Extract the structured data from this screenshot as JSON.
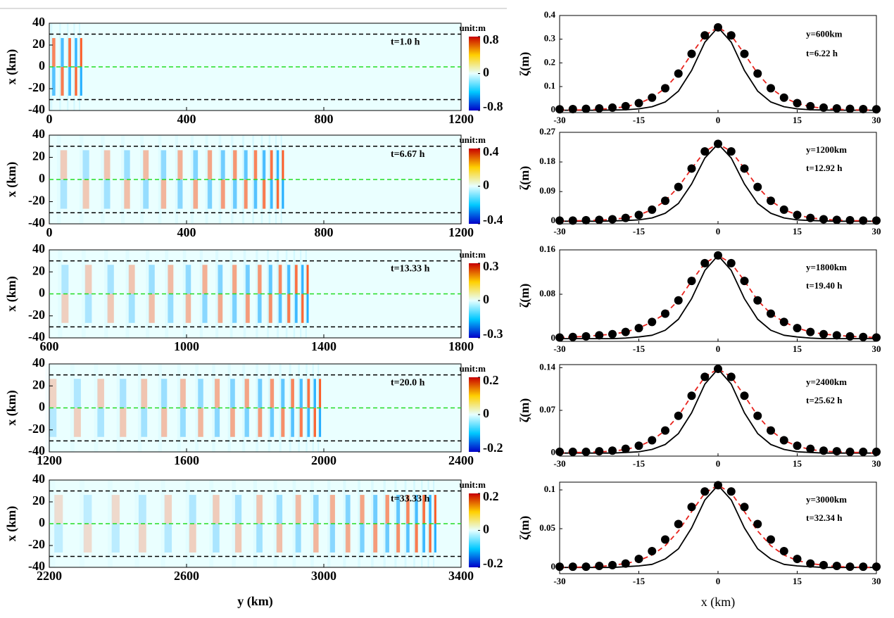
{
  "chart_data": [
    {
      "type": "heatmap",
      "xlim": [
        0,
        1200
      ],
      "xticks": [
        0,
        400,
        800,
        1200
      ],
      "ylim": [
        -40,
        40
      ],
      "yticks": [
        40,
        20,
        0,
        -20,
        -40
      ],
      "y_label": "x (km)",
      "annotation": "t=1.0 h",
      "reference_lines": [
        30,
        0,
        -30
      ],
      "colorbar": {
        "title": "unit:m",
        "lim": [
          -0.8,
          0.8
        ],
        "ticks": [
          0.8,
          0,
          -0.8
        ]
      }
    },
    {
      "type": "line",
      "x": [
        -30,
        -27.5,
        -25,
        -22.5,
        -20,
        -17.5,
        -15,
        -12.5,
        -10,
        -7.5,
        -5,
        -2.5,
        0,
        2.5,
        5,
        7.5,
        10,
        12.5,
        15,
        17.5,
        20,
        22.5,
        25,
        27.5,
        30
      ],
      "xlim": [
        -30,
        30
      ],
      "xticks": [
        -30,
        -15,
        0,
        15,
        30
      ],
      "ylim": [
        -0.01,
        0.4
      ],
      "yticks": [
        0,
        0.1,
        0.2,
        0.3,
        0.4
      ],
      "y_label": "ζ(m)",
      "annotations": [
        "y=600km",
        "t=6.22 h"
      ],
      "series": [
        {
          "color": "#000000",
          "style": "solid",
          "values": [
            0,
            0,
            0,
            0,
            0.001,
            0.002,
            0.006,
            0.015,
            0.035,
            0.081,
            0.168,
            0.287,
            0.35,
            0.287,
            0.168,
            0.081,
            0.035,
            0.015,
            0.006,
            0.002,
            0.001,
            0,
            0,
            0,
            0
          ]
        },
        {
          "color": "#e8231d",
          "style": "dashed",
          "values": [
            0.001,
            0.001,
            0.002,
            0.004,
            0.008,
            0.015,
            0.029,
            0.053,
            0.093,
            0.155,
            0.238,
            0.316,
            0.35,
            0.316,
            0.238,
            0.155,
            0.093,
            0.053,
            0.029,
            0.015,
            0.008,
            0.004,
            0.002,
            0.001,
            0.001
          ]
        },
        {
          "color": "#000000",
          "style": "markers",
          "values": [
            0.004,
            0.005,
            0.006,
            0.008,
            0.011,
            0.017,
            0.03,
            0.053,
            0.093,
            0.155,
            0.238,
            0.316,
            0.35,
            0.316,
            0.238,
            0.155,
            0.093,
            0.053,
            0.03,
            0.017,
            0.011,
            0.008,
            0.006,
            0.005,
            0.004
          ]
        }
      ]
    },
    {
      "type": "heatmap",
      "xlim": [
        0,
        1200
      ],
      "xticks": [
        0,
        400,
        800,
        1200
      ],
      "ylim": [
        -40,
        40
      ],
      "yticks": [
        40,
        20,
        0,
        -20,
        -40
      ],
      "y_label": "x (km)",
      "annotation": "t=6.67 h",
      "reference_lines": [
        30,
        0,
        -30
      ],
      "colorbar": {
        "title": "unit:m",
        "lim": [
          -0.4,
          0.4
        ],
        "ticks": [
          0.4,
          0,
          -0.4
        ]
      }
    },
    {
      "type": "line",
      "x": [
        -30,
        -27.5,
        -25,
        -22.5,
        -20,
        -17.5,
        -15,
        -12.5,
        -10,
        -7.5,
        -5,
        -2.5,
        0,
        2.5,
        5,
        7.5,
        10,
        12.5,
        15,
        17.5,
        20,
        22.5,
        25,
        27.5,
        30
      ],
      "xlim": [
        -30,
        30
      ],
      "xticks": [
        -30,
        -15,
        0,
        15,
        30
      ],
      "ylim": [
        -0.008,
        0.27
      ],
      "yticks": [
        0,
        0.09,
        0.18,
        0.27
      ],
      "y_label": "ζ(m)",
      "annotations": [
        "y=1200km",
        "t=12.92 h"
      ],
      "series": [
        {
          "color": "#000000",
          "style": "solid",
          "values": [
            0,
            0,
            0,
            0,
            0.001,
            0.002,
            0.004,
            0.01,
            0.024,
            0.054,
            0.113,
            0.192,
            0.235,
            0.192,
            0.113,
            0.054,
            0.024,
            0.01,
            0.004,
            0.002,
            0.001,
            0,
            0,
            0,
            0
          ]
        },
        {
          "color": "#e8231d",
          "style": "dashed",
          "values": [
            0,
            0.001,
            0.002,
            0.003,
            0.006,
            0.01,
            0.019,
            0.035,
            0.062,
            0.104,
            0.16,
            0.212,
            0.235,
            0.212,
            0.16,
            0.104,
            0.062,
            0.035,
            0.019,
            0.01,
            0.006,
            0.003,
            0.002,
            0.001,
            0
          ]
        },
        {
          "color": "#000000",
          "style": "markers",
          "values": [
            0.002,
            0.002,
            0.003,
            0.004,
            0.006,
            0.01,
            0.019,
            0.035,
            0.062,
            0.104,
            0.16,
            0.212,
            0.235,
            0.212,
            0.16,
            0.104,
            0.062,
            0.035,
            0.019,
            0.01,
            0.006,
            0.004,
            0.003,
            0.002,
            0.002
          ]
        }
      ]
    },
    {
      "type": "heatmap",
      "xlim": [
        600,
        1800
      ],
      "xticks": [
        600,
        1000,
        1400,
        1800
      ],
      "ylim": [
        -40,
        40
      ],
      "yticks": [
        40,
        20,
        0,
        -20,
        -40
      ],
      "y_label": "x (km)",
      "annotation": "t=13.33 h",
      "reference_lines": [
        30,
        0,
        -30
      ],
      "colorbar": {
        "title": "unit:m",
        "lim": [
          -0.3,
          0.3
        ],
        "ticks": [
          0.3,
          0,
          -0.3
        ]
      }
    },
    {
      "type": "line",
      "x": [
        -30,
        -27.5,
        -25,
        -22.5,
        -20,
        -17.5,
        -15,
        -12.5,
        -10,
        -7.5,
        -5,
        -2.5,
        0,
        2.5,
        5,
        7.5,
        10,
        12.5,
        15,
        17.5,
        20,
        22.5,
        25,
        27.5,
        30
      ],
      "xlim": [
        -30,
        30
      ],
      "xticks": [
        -30,
        -15,
        0,
        15,
        30
      ],
      "ylim": [
        -0.005,
        0.16
      ],
      "yticks": [
        0,
        0.08,
        0.16
      ],
      "y_label": "ζ(m)",
      "annotations": [
        "y=1800km",
        "t=19.40 h"
      ],
      "series": [
        {
          "color": "#000000",
          "style": "solid",
          "values": [
            0,
            0,
            0,
            0,
            0,
            0.001,
            0.003,
            0.006,
            0.015,
            0.035,
            0.072,
            0.123,
            0.15,
            0.123,
            0.072,
            0.035,
            0.015,
            0.006,
            0.003,
            0.001,
            0,
            0,
            0,
            0,
            0
          ]
        },
        {
          "color": "#e8231d",
          "style": "dashed",
          "values": [
            0.002,
            0.003,
            0.004,
            0.006,
            0.008,
            0.012,
            0.019,
            0.03,
            0.045,
            0.069,
            0.104,
            0.136,
            0.15,
            0.136,
            0.104,
            0.069,
            0.045,
            0.03,
            0.019,
            0.012,
            0.008,
            0.006,
            0.004,
            0.003,
            0.002
          ]
        },
        {
          "color": "#000000",
          "style": "markers",
          "values": [
            0.002,
            0.003,
            0.004,
            0.006,
            0.008,
            0.012,
            0.019,
            0.03,
            0.045,
            0.069,
            0.104,
            0.136,
            0.15,
            0.136,
            0.104,
            0.069,
            0.045,
            0.03,
            0.019,
            0.012,
            0.008,
            0.006,
            0.004,
            0.003,
            0.002
          ]
        }
      ]
    },
    {
      "type": "heatmap",
      "xlim": [
        1200,
        2400
      ],
      "xticks": [
        1200,
        1600,
        2000,
        2400
      ],
      "ylim": [
        -40,
        40
      ],
      "yticks": [
        40,
        20,
        0,
        -20,
        -40
      ],
      "y_label": "x (km)",
      "annotation": "t=20.0 h",
      "reference_lines": [
        30,
        0,
        -30
      ],
      "colorbar": {
        "title": "unit:m",
        "lim": [
          -0.2,
          0.2
        ],
        "ticks": [
          0.2,
          0,
          -0.2
        ]
      }
    },
    {
      "type": "line",
      "x": [
        -30,
        -27.5,
        -25,
        -22.5,
        -20,
        -17.5,
        -15,
        -12.5,
        -10,
        -7.5,
        -5,
        -2.5,
        0,
        2.5,
        5,
        7.5,
        10,
        12.5,
        15,
        17.5,
        20,
        22.5,
        25,
        27.5,
        30
      ],
      "xlim": [
        -30,
        30
      ],
      "xticks": [
        -30,
        -15,
        0,
        15,
        30
      ],
      "ylim": [
        -0.005,
        0.145
      ],
      "yticks": [
        0,
        0.07,
        0.14
      ],
      "y_label": "ζ(m)",
      "annotations": [
        "y=2400km",
        "t=25.62 h"
      ],
      "series": [
        {
          "color": "#000000",
          "style": "solid",
          "values": [
            0,
            0,
            0,
            0,
            0,
            0.001,
            0.002,
            0.006,
            0.014,
            0.032,
            0.066,
            0.113,
            0.138,
            0.113,
            0.066,
            0.032,
            0.014,
            0.006,
            0.002,
            0.001,
            0,
            0,
            0,
            0,
            0
          ]
        },
        {
          "color": "#e8231d",
          "style": "dashed",
          "values": [
            0,
            0.001,
            0.001,
            0.002,
            0.003,
            0.006,
            0.011,
            0.021,
            0.037,
            0.061,
            0.094,
            0.125,
            0.138,
            0.125,
            0.094,
            0.061,
            0.037,
            0.021,
            0.011,
            0.006,
            0.003,
            0.002,
            0.001,
            0.001,
            0
          ]
        },
        {
          "color": "#000000",
          "style": "markers",
          "values": [
            0.002,
            0.002,
            0.002,
            0.003,
            0.004,
            0.007,
            0.012,
            0.021,
            0.037,
            0.061,
            0.094,
            0.125,
            0.138,
            0.125,
            0.094,
            0.061,
            0.037,
            0.021,
            0.012,
            0.007,
            0.004,
            0.003,
            0.002,
            0.002,
            0.002
          ]
        }
      ]
    },
    {
      "type": "heatmap",
      "xlim": [
        2200,
        3400
      ],
      "xticks": [
        2200,
        2600,
        3000,
        3400
      ],
      "ylim": [
        -40,
        40
      ],
      "yticks": [
        40,
        20,
        0,
        -20,
        -40
      ],
      "y_label": "x (km)",
      "x_label": "y (km)",
      "annotation": "t=33.33 h",
      "reference_lines": [
        30,
        0,
        -30
      ],
      "colorbar": {
        "title": "unit:m",
        "lim": [
          -0.2,
          0.2
        ],
        "ticks": [
          0.2,
          0,
          -0.2
        ]
      }
    },
    {
      "type": "line",
      "x": [
        -30,
        -27.5,
        -25,
        -22.5,
        -20,
        -17.5,
        -15,
        -12.5,
        -10,
        -7.5,
        -5,
        -2.5,
        0,
        2.5,
        5,
        7.5,
        10,
        12.5,
        15,
        17.5,
        20,
        22.5,
        25,
        27.5,
        30
      ],
      "xlim": [
        -30,
        30
      ],
      "xticks": [
        -30,
        -15,
        0,
        15,
        30
      ],
      "ylim": [
        -0.008,
        0.11
      ],
      "yticks": [
        0,
        0.05,
        0.1
      ],
      "y_label": "ζ(m)",
      "x_label": "x (km)",
      "annotations": [
        "y=3000km",
        "t=32.34 h"
      ],
      "series": [
        {
          "color": "#000000",
          "style": "solid",
          "values": [
            0,
            0,
            0,
            0,
            0,
            0.001,
            0.002,
            0.004,
            0.011,
            0.024,
            0.051,
            0.087,
            0.106,
            0.087,
            0.051,
            0.024,
            0.011,
            0.004,
            0.002,
            0.001,
            0,
            0,
            0,
            0,
            0
          ]
        },
        {
          "color": "#e8231d",
          "style": "dashed",
          "values": [
            0,
            0,
            0.001,
            0.001,
            0.003,
            0.005,
            0.009,
            0.016,
            0.028,
            0.047,
            0.072,
            0.096,
            0.106,
            0.096,
            0.072,
            0.047,
            0.028,
            0.016,
            0.009,
            0.005,
            0.003,
            0.001,
            0.001,
            0,
            0
          ]
        },
        {
          "color": "#000000",
          "style": "markers",
          "values": [
            0.001,
            0.001,
            0.001,
            0.002,
            0.003,
            0.005,
            0.011,
            0.021,
            0.036,
            0.056,
            0.078,
            0.098,
            0.106,
            0.098,
            0.078,
            0.056,
            0.036,
            0.021,
            0.011,
            0.005,
            0.003,
            0.002,
            0.001,
            0.001,
            0.001
          ]
        }
      ]
    }
  ]
}
